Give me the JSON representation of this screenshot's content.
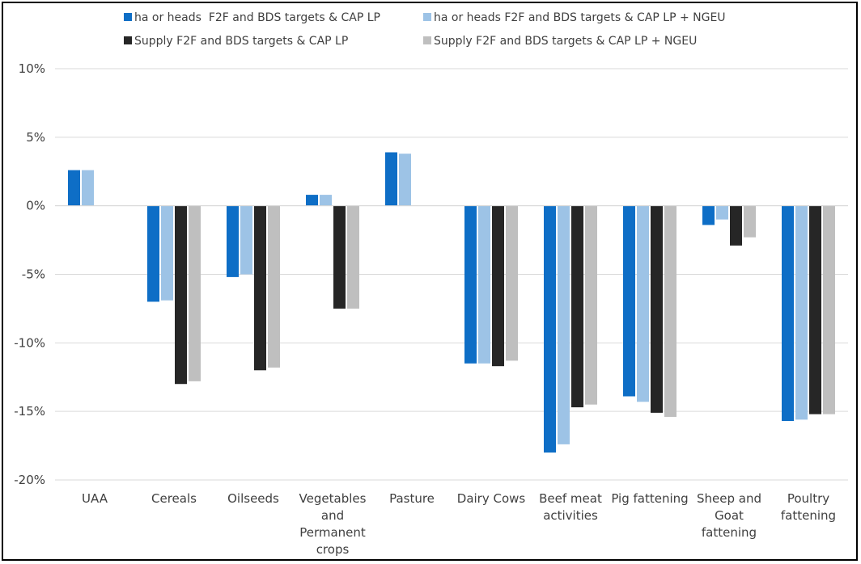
{
  "chart_data": {
    "type": "bar",
    "title": "",
    "xlabel": "",
    "ylabel": "",
    "ylim": [
      -20,
      10
    ],
    "yticks": [
      10,
      5,
      0,
      -5,
      -10,
      -15,
      -20
    ],
    "ytick_suffix": "%",
    "grid": "horizontal",
    "legend_position": "top",
    "categories": [
      [
        "UAA"
      ],
      [
        "Cereals"
      ],
      [
        "Oilseeds"
      ],
      [
        "Vegetables",
        "and",
        "Permanent",
        "crops"
      ],
      [
        "Pasture"
      ],
      [
        "Dairy Cows"
      ],
      [
        "Beef meat",
        "activities"
      ],
      [
        "Pig fattening"
      ],
      [
        "Sheep and",
        "Goat",
        "fattening"
      ],
      [
        "Poultry",
        "fattening"
      ]
    ],
    "series": [
      {
        "name": "ha or heads  F2F and BDS targets & CAP LP",
        "color": "#0e6ec6",
        "values": [
          2.6,
          -7.0,
          -5.2,
          0.8,
          3.9,
          -11.5,
          -18.0,
          -13.9,
          -1.4,
          -15.7
        ]
      },
      {
        "name": "ha or heads F2F and BDS targets & CAP LP + NGEU",
        "color": "#9dc3e6",
        "values": [
          2.6,
          -6.9,
          -5.0,
          0.8,
          3.8,
          -11.5,
          -17.4,
          -14.3,
          -1.0,
          -15.6
        ]
      },
      {
        "name": "Supply F2F and BDS targets & CAP LP",
        "color": "#262626",
        "values": [
          null,
          -13.0,
          -12.0,
          -7.5,
          null,
          -11.7,
          -14.7,
          -15.1,
          -2.9,
          -15.2
        ]
      },
      {
        "name": "Supply F2F and BDS targets & CAP LP + NGEU",
        "color": "#bfbfbf",
        "values": [
          null,
          -12.8,
          -11.8,
          -7.5,
          null,
          -11.3,
          -14.5,
          -15.4,
          -2.3,
          -15.2
        ]
      }
    ]
  }
}
